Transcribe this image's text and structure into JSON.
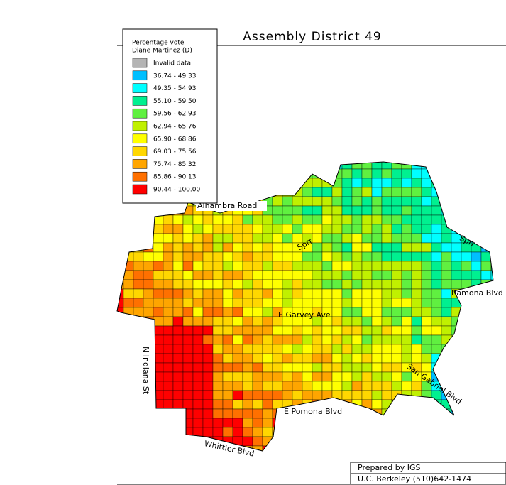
{
  "header": {
    "title": "Assembly District 49"
  },
  "legend": {
    "title": [
      "Percentage vote",
      "Diane Martinez (D)"
    ],
    "items": [
      {
        "label": "Invalid data",
        "color": "#b4b4b4"
      },
      {
        "label": "36.74 - 49.33",
        "color": "#00bfff"
      },
      {
        "label": "49.35 - 54.93",
        "color": "#00ffff"
      },
      {
        "label": "55.10 - 59.50",
        "color": "#00f090"
      },
      {
        "label": "59.56 - 62.93",
        "color": "#60f040"
      },
      {
        "label": "62.94 - 65.76",
        "color": "#c0f000"
      },
      {
        "label": "65.90 - 68.86",
        "color": "#ffff00"
      },
      {
        "label": "69.03 - 75.56",
        "color": "#ffd700"
      },
      {
        "label": "75.74 - 85.32",
        "color": "#ffa500"
      },
      {
        "label": "85.86 - 90.13",
        "color": "#ff7000"
      },
      {
        "label": "90.44 - 100.00",
        "color": "#ff0000"
      }
    ]
  },
  "roads": [
    "Alhambra Road",
    "Sprr",
    "Sprr",
    "Ramona Blvd",
    "E Garvey Ave",
    "San Gabriel Blvd",
    "N Indiana St",
    "E Pomona Blvd",
    "Whittier Blvd"
  ],
  "footer": [
    "Prepared by IGS",
    "U.C. Berkeley (510)642-1474"
  ]
}
